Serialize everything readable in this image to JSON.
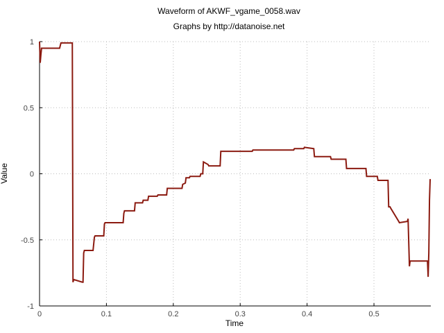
{
  "chart_data": {
    "type": "line",
    "title": "Waveform of AKWF_vgame_0058.wav",
    "subtitle": "Graphs by http://datanoise.net",
    "xlabel": "Time",
    "ylabel": "Value",
    "xlim": [
      0,
      0.585
    ],
    "ylim": [
      -1,
      1
    ],
    "grid": true,
    "line_color": "#8b1a10",
    "x_ticks": [
      0,
      0.1,
      0.2,
      0.3,
      0.4,
      0.5
    ],
    "x_tick_labels": [
      "0",
      "0.1",
      "0.2",
      "0.3",
      "0.4",
      "0.5"
    ],
    "y_ticks": [
      1,
      0.5,
      0,
      -0.5,
      -1
    ],
    "y_tick_labels": [
      "1",
      "0.5",
      "0",
      "-0.5",
      "-1"
    ],
    "series": [
      {
        "x": [
          0,
          0.001,
          0.002,
          0.003,
          0.005,
          0.03,
          0.032,
          0.048,
          0.049,
          0.05,
          0.051,
          0.064,
          0.065,
          0.066,
          0.067,
          0.08,
          0.082,
          0.083,
          0.096,
          0.097,
          0.098,
          0.125,
          0.126,
          0.127,
          0.142,
          0.143,
          0.154,
          0.155,
          0.162,
          0.163,
          0.176,
          0.177,
          0.19,
          0.191,
          0.213,
          0.214,
          0.218,
          0.219,
          0.224,
          0.225,
          0.24,
          0.241,
          0.244,
          0.245,
          0.252,
          0.253,
          0.27,
          0.271,
          0.318,
          0.319,
          0.38,
          0.381,
          0.395,
          0.396,
          0.41,
          0.411,
          0.435,
          0.436,
          0.458,
          0.459,
          0.488,
          0.489,
          0.505,
          0.506,
          0.521,
          0.522,
          0.524,
          0.525,
          0.537,
          0.538,
          0.55,
          0.551,
          0.553,
          0.554,
          0.58,
          0.581,
          0.582,
          0.583,
          0.584
        ],
        "y": [
          1.0,
          0.84,
          0.9,
          0.95,
          0.95,
          0.95,
          0.99,
          0.99,
          0.99,
          -0.82,
          -0.8,
          -0.82,
          -0.82,
          -0.6,
          -0.58,
          -0.58,
          -0.48,
          -0.47,
          -0.47,
          -0.38,
          -0.37,
          -0.37,
          -0.3,
          -0.28,
          -0.28,
          -0.22,
          -0.22,
          -0.2,
          -0.2,
          -0.17,
          -0.17,
          -0.16,
          -0.16,
          -0.11,
          -0.11,
          -0.08,
          -0.07,
          -0.03,
          -0.03,
          -0.02,
          -0.02,
          0.0,
          0.0,
          0.09,
          0.07,
          0.06,
          0.06,
          0.17,
          0.17,
          0.18,
          0.18,
          0.19,
          0.19,
          0.2,
          0.19,
          0.13,
          0.13,
          0.11,
          0.11,
          0.04,
          0.04,
          -0.02,
          -0.02,
          -0.05,
          -0.05,
          -0.25,
          -0.25,
          -0.26,
          -0.36,
          -0.37,
          -0.36,
          -0.34,
          -0.7,
          -0.66,
          -0.66,
          -0.78,
          -0.6,
          -0.2,
          -0.04
        ]
      }
    ]
  }
}
